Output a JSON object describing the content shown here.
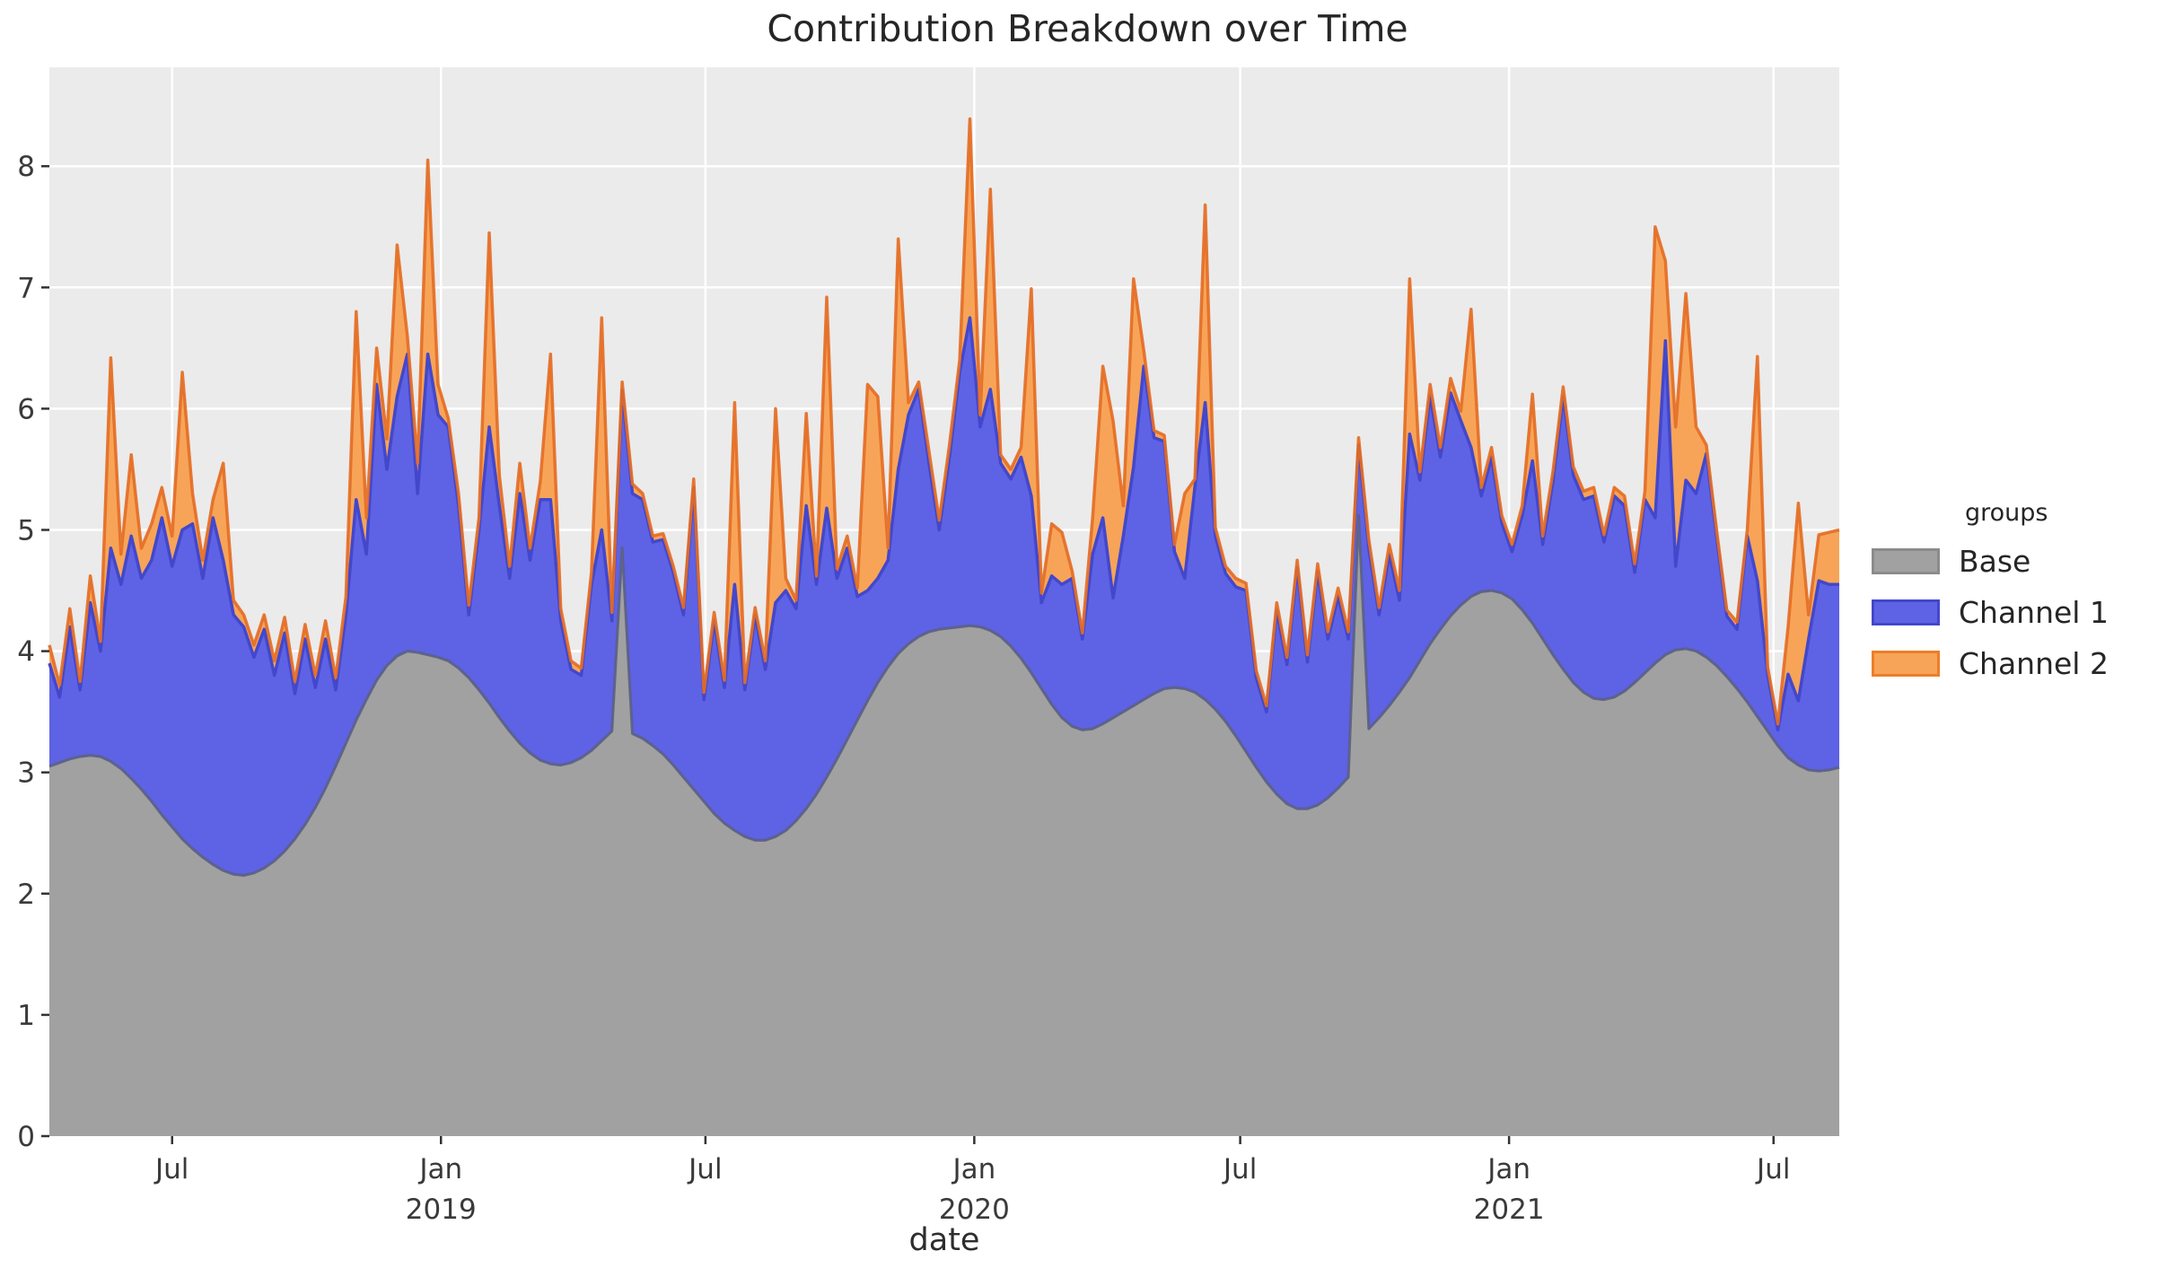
{
  "title": "Contribution Breakdown over Time",
  "xlabel": "date",
  "legend": {
    "title": "groups",
    "items": [
      {
        "label": "Base",
        "fill": "#a1a1a1",
        "stroke": "#8b8b8b"
      },
      {
        "label": "Channel 1",
        "fill": "#5e62e4",
        "stroke": "#4347cb"
      },
      {
        "label": "Channel 2",
        "fill": "#f7a458",
        "stroke": "#ec7e2b"
      }
    ]
  },
  "style": {
    "panel_bg": "#ebebeb",
    "grid_color": "#ffffff",
    "tick_text_color": "#3a3a3a",
    "tick_mark_color": "#333333",
    "base_fill": "#a1a1a1",
    "base_stroke": "rgba(90,95,130,0.9)",
    "ch1_fill": "#5e62e4",
    "ch1_stroke": "#4347cb",
    "ch2_fill": "#f7a458",
    "ch2_stroke": "rgba(228,108,36,0.92)"
  },
  "chart_data": {
    "type": "area",
    "stacked": true,
    "title": "Contribution Breakdown over Time",
    "xlabel": "date",
    "ylabel": "",
    "legend_title": "groups",
    "legend_position": "right",
    "grid": true,
    "start_date": "2018-04-08",
    "interval_days": 7,
    "n_points": 176,
    "span_days": 1225,
    "ylim": [
      0,
      8.815
    ],
    "yticks": [
      0,
      1,
      2,
      3,
      4,
      5,
      6,
      7,
      8
    ],
    "xticks": [
      {
        "label": "Jul",
        "year": "",
        "day": 84
      },
      {
        "label": "Jan",
        "year": "2019",
        "day": 268
      },
      {
        "label": "Jul",
        "year": "",
        "day": 449
      },
      {
        "label": "Jan",
        "year": "2020",
        "day": 633
      },
      {
        "label": "Jul",
        "year": "",
        "day": 815
      },
      {
        "label": "Jan",
        "year": "2021",
        "day": 999
      },
      {
        "label": "Jul",
        "year": "",
        "day": 1180
      }
    ],
    "series": [
      {
        "name": "Base",
        "values": [
          3.05,
          3.08,
          3.11,
          3.13,
          3.14,
          3.13,
          3.09,
          3.03,
          2.95,
          2.86,
          2.76,
          2.65,
          2.55,
          2.45,
          2.37,
          2.3,
          2.24,
          2.19,
          2.16,
          2.15,
          2.17,
          2.21,
          2.27,
          2.35,
          2.45,
          2.57,
          2.71,
          2.87,
          3.05,
          3.24,
          3.43,
          3.6,
          3.76,
          3.88,
          3.96,
          4.0,
          3.99,
          3.97,
          3.95,
          3.92,
          3.86,
          3.78,
          3.68,
          3.57,
          3.45,
          3.34,
          3.24,
          3.16,
          3.1,
          3.07,
          3.06,
          3.08,
          3.12,
          3.18,
          3.26,
          3.34,
          4.85,
          3.32,
          3.28,
          3.22,
          3.15,
          3.06,
          2.96,
          2.86,
          2.76,
          2.66,
          2.58,
          2.52,
          2.47,
          2.44,
          2.44,
          2.47,
          2.52,
          2.6,
          2.7,
          2.82,
          2.96,
          3.11,
          3.27,
          3.43,
          3.59,
          3.74,
          3.87,
          3.98,
          4.06,
          4.12,
          4.16,
          4.18,
          4.19,
          4.2,
          4.21,
          4.2,
          4.17,
          4.12,
          4.04,
          3.94,
          3.82,
          3.69,
          3.56,
          3.45,
          3.38,
          3.35,
          3.36,
          3.4,
          3.45,
          3.5,
          3.55,
          3.6,
          3.65,
          3.69,
          3.7,
          3.69,
          3.66,
          3.6,
          3.52,
          3.42,
          3.3,
          3.17,
          3.04,
          2.92,
          2.82,
          2.74,
          2.7,
          2.7,
          2.73,
          2.79,
          2.87,
          2.96,
          5.12,
          3.36,
          3.45,
          3.55,
          3.66,
          3.78,
          3.92,
          4.06,
          4.18,
          4.29,
          4.38,
          4.45,
          4.49,
          4.5,
          4.48,
          4.43,
          4.34,
          4.23,
          4.1,
          3.97,
          3.85,
          3.74,
          3.66,
          3.61,
          3.6,
          3.62,
          3.67,
          3.74,
          3.82,
          3.9,
          3.97,
          4.01,
          4.02,
          4.0,
          3.95,
          3.88,
          3.79,
          3.69,
          3.58,
          3.46,
          3.34,
          3.22,
          3.12,
          3.06,
          3.02,
          3.01,
          3.02,
          3.04
        ]
      },
      {
        "name": "Channel 1",
        "values": [
          0.85,
          0.54,
          1.09,
          0.55,
          1.26,
          0.87,
          1.76,
          1.52,
          2.0,
          1.74,
          1.99,
          2.45,
          2.15,
          2.55,
          2.68,
          2.3,
          2.86,
          2.56,
          2.14,
          2.05,
          1.78,
          1.97,
          1.53,
          1.8,
          1.2,
          1.53,
          0.99,
          1.23,
          0.63,
          1.06,
          1.82,
          1.2,
          2.44,
          1.62,
          2.14,
          2.45,
          1.31,
          2.48,
          2.0,
          1.93,
          1.34,
          0.52,
          1.32,
          2.28,
          1.75,
          1.26,
          2.06,
          1.59,
          2.15,
          2.18,
          1.19,
          0.77,
          0.68,
          1.37,
          1.74,
          0.91,
          1.3,
          1.98,
          1.97,
          1.68,
          1.77,
          1.59,
          1.34,
          2.49,
          0.84,
          1.59,
          1.12,
          2.03,
          1.21,
          1.86,
          1.41,
          1.93,
          1.98,
          1.75,
          2.5,
          1.73,
          2.22,
          1.49,
          1.58,
          1.02,
          0.91,
          0.86,
          0.88,
          1.52,
          1.89,
          2.04,
          1.39,
          0.82,
          1.41,
          2.1,
          2.54,
          1.65,
          1.99,
          1.43,
          1.38,
          1.66,
          1.46,
          0.71,
          1.06,
          1.1,
          1.22,
          0.75,
          1.44,
          1.7,
          0.99,
          1.45,
          1.97,
          2.75,
          2.11,
          2.04,
          1.12,
          0.91,
          1.7,
          2.45,
          1.43,
          1.22,
          1.23,
          1.33,
          0.74,
          0.58,
          1.52,
          1.15,
          1.99,
          1.21,
          1.93,
          1.31,
          1.58,
          1.14,
          0.58,
          1.49,
          0.85,
          1.25,
          0.76,
          2.01,
          1.49,
          2.05,
          1.42,
          1.84,
          1.52,
          1.23,
          0.79,
          1.1,
          0.58,
          0.39,
          0.78,
          1.34,
          0.78,
          1.43,
          2.25,
          1.71,
          1.59,
          1.67,
          1.3,
          1.66,
          1.53,
          0.91,
          1.43,
          1.2,
          2.59,
          0.69,
          1.39,
          1.3,
          1.68,
          1.07,
          0.5,
          0.49,
          1.37,
          1.12,
          0.47,
          0.13,
          0.69,
          0.53,
          1.08,
          1.57,
          1.53,
          1.51
        ]
      },
      {
        "name": "Channel 2",
        "values": [
          0.15,
          0.1,
          0.15,
          0.07,
          0.22,
          0.08,
          1.57,
          0.25,
          0.67,
          0.25,
          0.3,
          0.25,
          0.25,
          1.3,
          0.25,
          0.15,
          0.15,
          0.8,
          0.12,
          0.1,
          0.1,
          0.12,
          0.12,
          0.13,
          0.1,
          0.12,
          0.1,
          0.15,
          0.1,
          0.15,
          1.55,
          0.3,
          0.3,
          0.25,
          1.25,
          0.15,
          0.25,
          1.6,
          0.25,
          0.07,
          0.1,
          0.08,
          0.1,
          1.6,
          0.25,
          0.1,
          0.25,
          0.1,
          0.15,
          1.2,
          0.1,
          0.07,
          0.06,
          0.1,
          1.75,
          0.07,
          0.07,
          0.08,
          0.05,
          0.05,
          0.05,
          0.05,
          0.06,
          0.07,
          0.06,
          0.07,
          0.06,
          1.5,
          0.06,
          0.06,
          0.07,
          1.6,
          0.1,
          0.07,
          0.76,
          0.07,
          1.74,
          0.08,
          0.1,
          0.07,
          1.7,
          1.5,
          0.1,
          1.9,
          0.1,
          0.06,
          0.1,
          0.08,
          0.1,
          0.1,
          1.64,
          0.1,
          1.65,
          0.07,
          0.08,
          0.08,
          1.71,
          0.08,
          0.43,
          0.43,
          0.06,
          0.05,
          0.3,
          1.25,
          1.46,
          0.25,
          1.55,
          0.13,
          0.06,
          0.05,
          0.06,
          0.7,
          0.06,
          1.63,
          0.07,
          0.06,
          0.07,
          0.06,
          0.06,
          0.05,
          0.06,
          0.06,
          0.06,
          0.06,
          0.06,
          0.06,
          0.07,
          0.06,
          0.06,
          0.07,
          0.06,
          0.08,
          0.08,
          1.28,
          0.07,
          0.09,
          0.08,
          0.12,
          0.08,
          1.14,
          0.07,
          0.08,
          0.06,
          0.06,
          0.08,
          0.55,
          0.07,
          0.08,
          0.08,
          0.07,
          0.07,
          0.07,
          0.06,
          0.07,
          0.08,
          0.07,
          0.07,
          2.4,
          0.66,
          1.15,
          1.54,
          0.55,
          0.07,
          0.05,
          0.05,
          0.06,
          0.05,
          1.85,
          0.06,
          0.05,
          0.39,
          1.63,
          0.2,
          0.38,
          0.43,
          0.45
        ]
      }
    ]
  }
}
